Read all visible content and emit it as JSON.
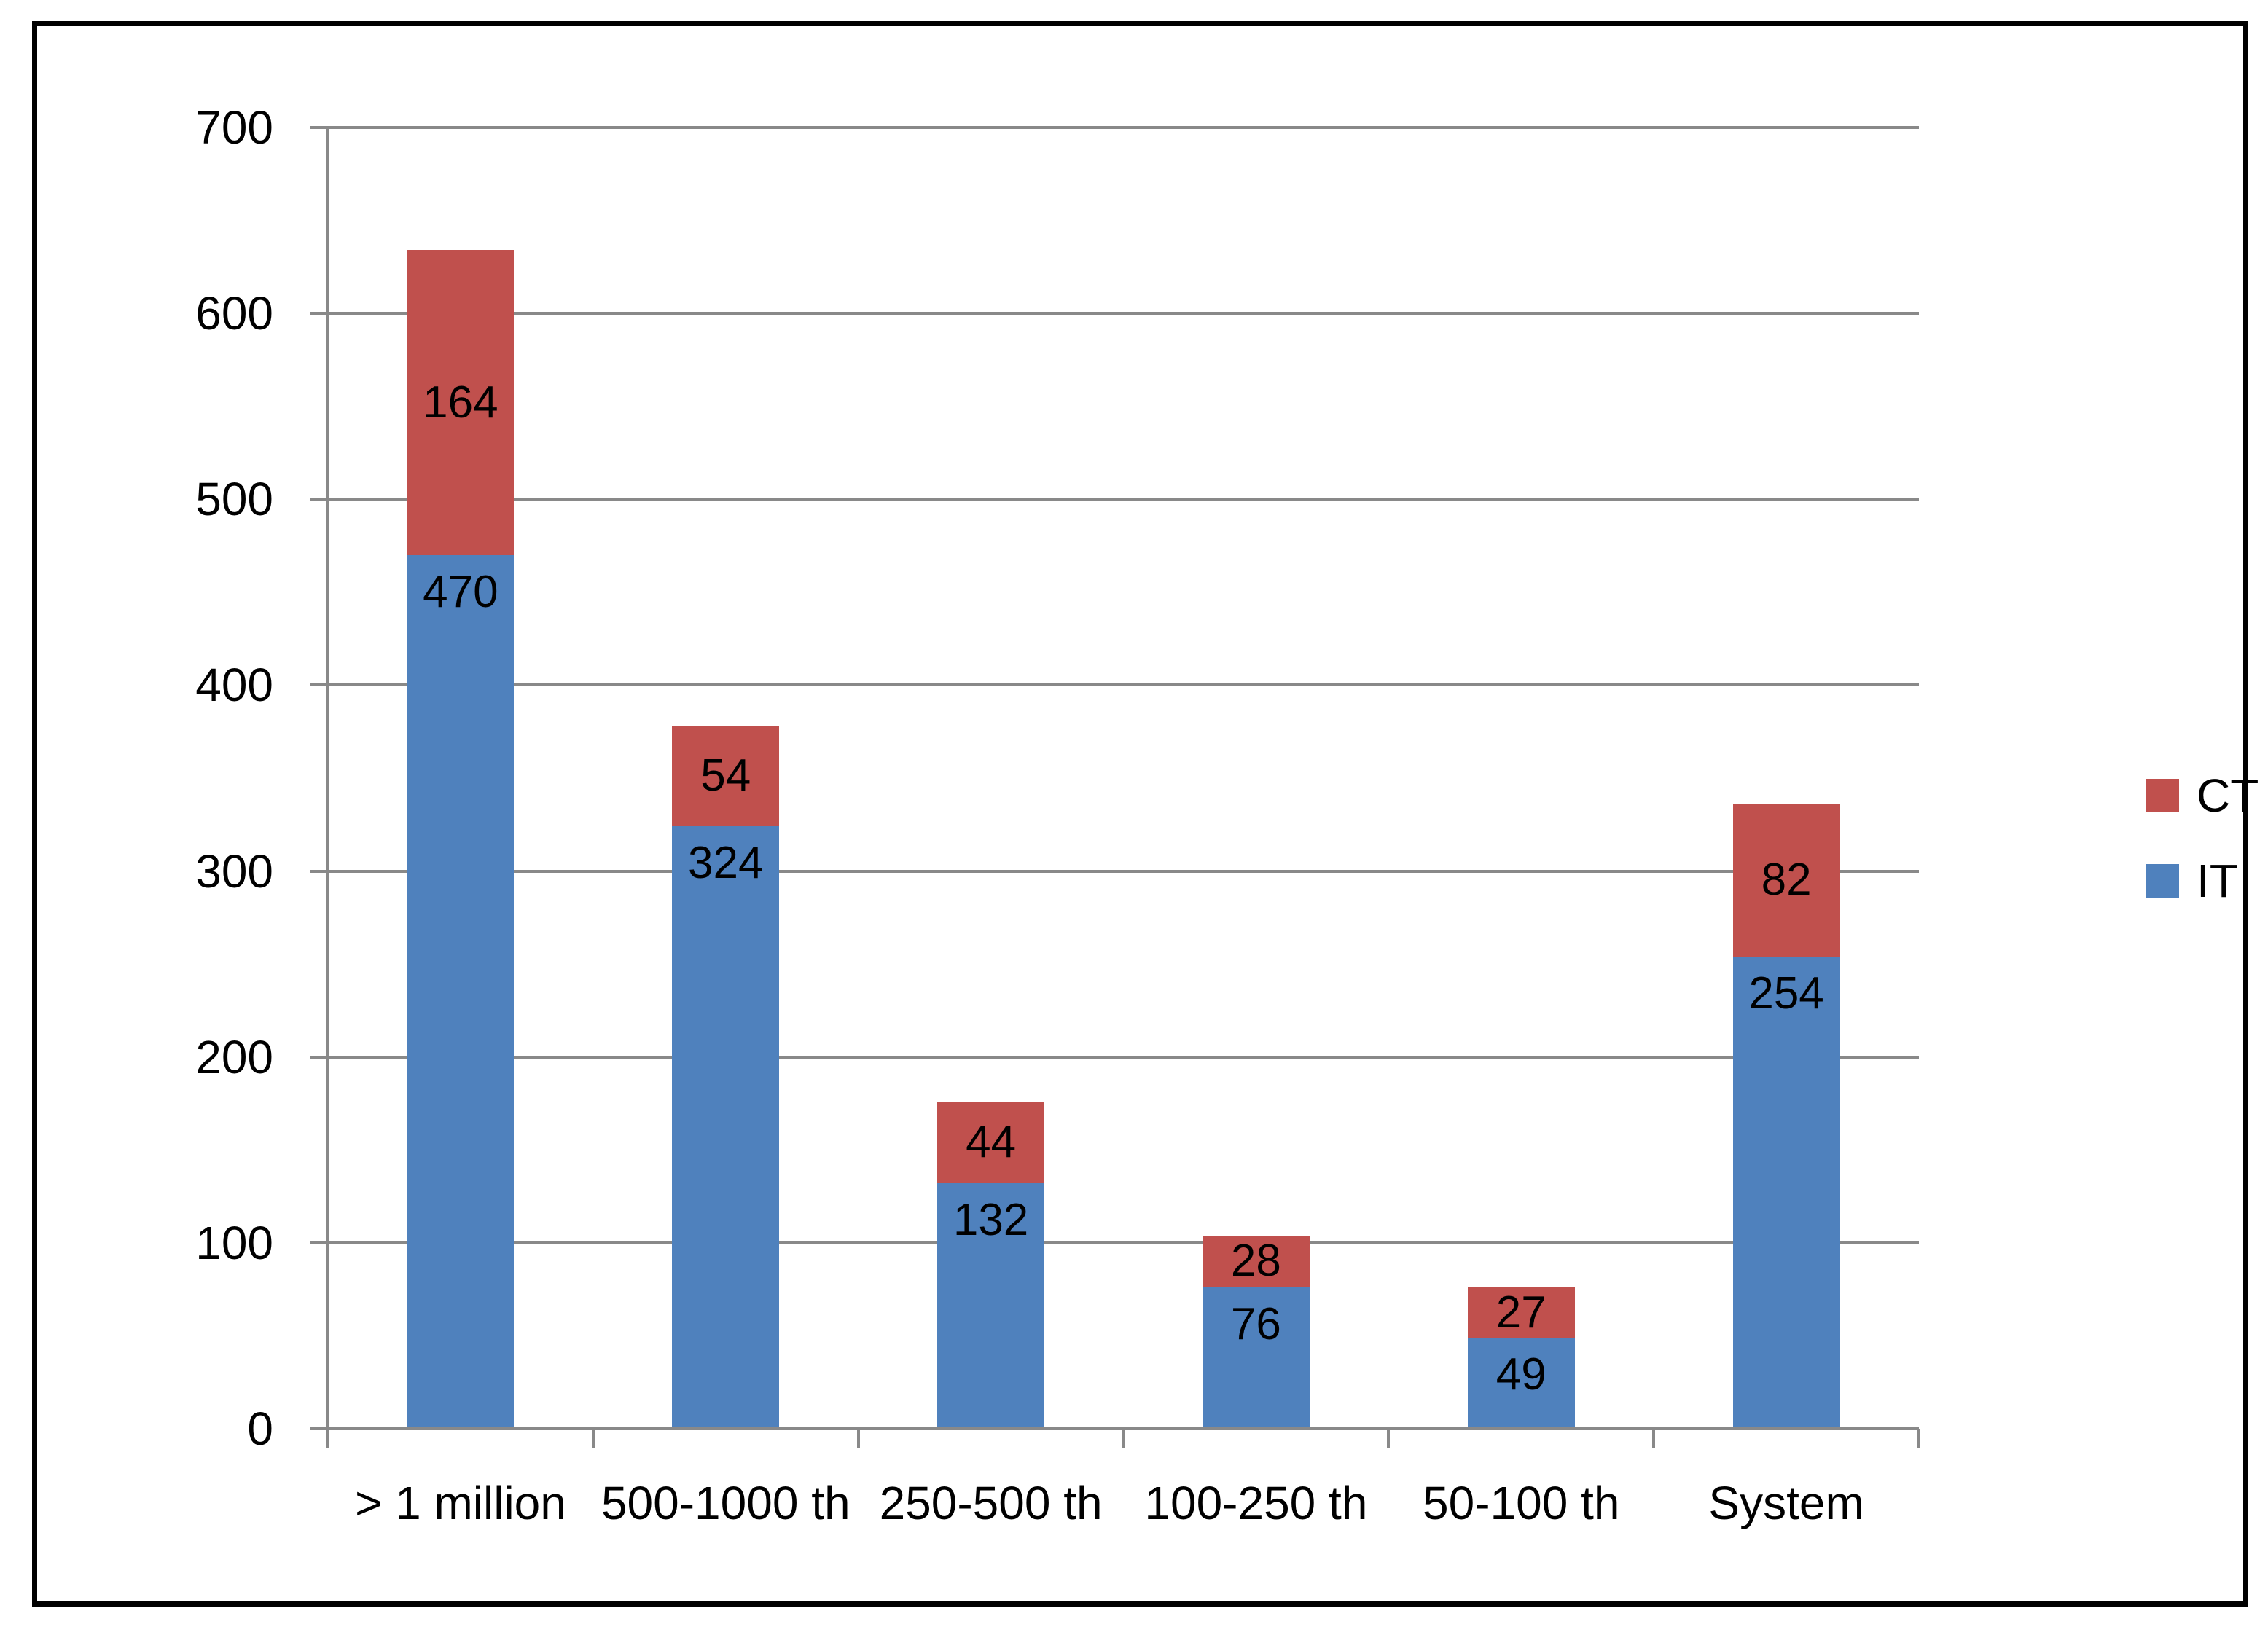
{
  "chart_data": {
    "type": "bar",
    "stacked": true,
    "title": "",
    "xlabel": "",
    "ylabel": "",
    "categories": [
      "> 1 million",
      "500-1000 th",
      "250-500 th",
      "100-250 th",
      "50-100 th",
      "System"
    ],
    "series": [
      {
        "name": "IT",
        "color": "#4F81BD",
        "values": [
          470,
          324,
          132,
          76,
          49,
          254
        ],
        "label_position": "inside-end"
      },
      {
        "name": "CT",
        "color": "#C0504D",
        "values": [
          164,
          54,
          44,
          28,
          27,
          82
        ],
        "label_position": "center"
      }
    ],
    "totals": [
      634,
      378,
      176,
      104,
      76,
      336
    ],
    "ylim": [
      0,
      700
    ],
    "ytick_step": 100,
    "yticks": [
      "0",
      "100",
      "200",
      "300",
      "400",
      "500",
      "600",
      "700"
    ],
    "grid": true,
    "legend_position": "right",
    "legend_order": [
      "CT",
      "IT"
    ],
    "colors": {
      "gridline": "#898989",
      "axis": "#898989",
      "label": "#000000",
      "frame": "#000000",
      "background": "#FFFFFF"
    }
  }
}
